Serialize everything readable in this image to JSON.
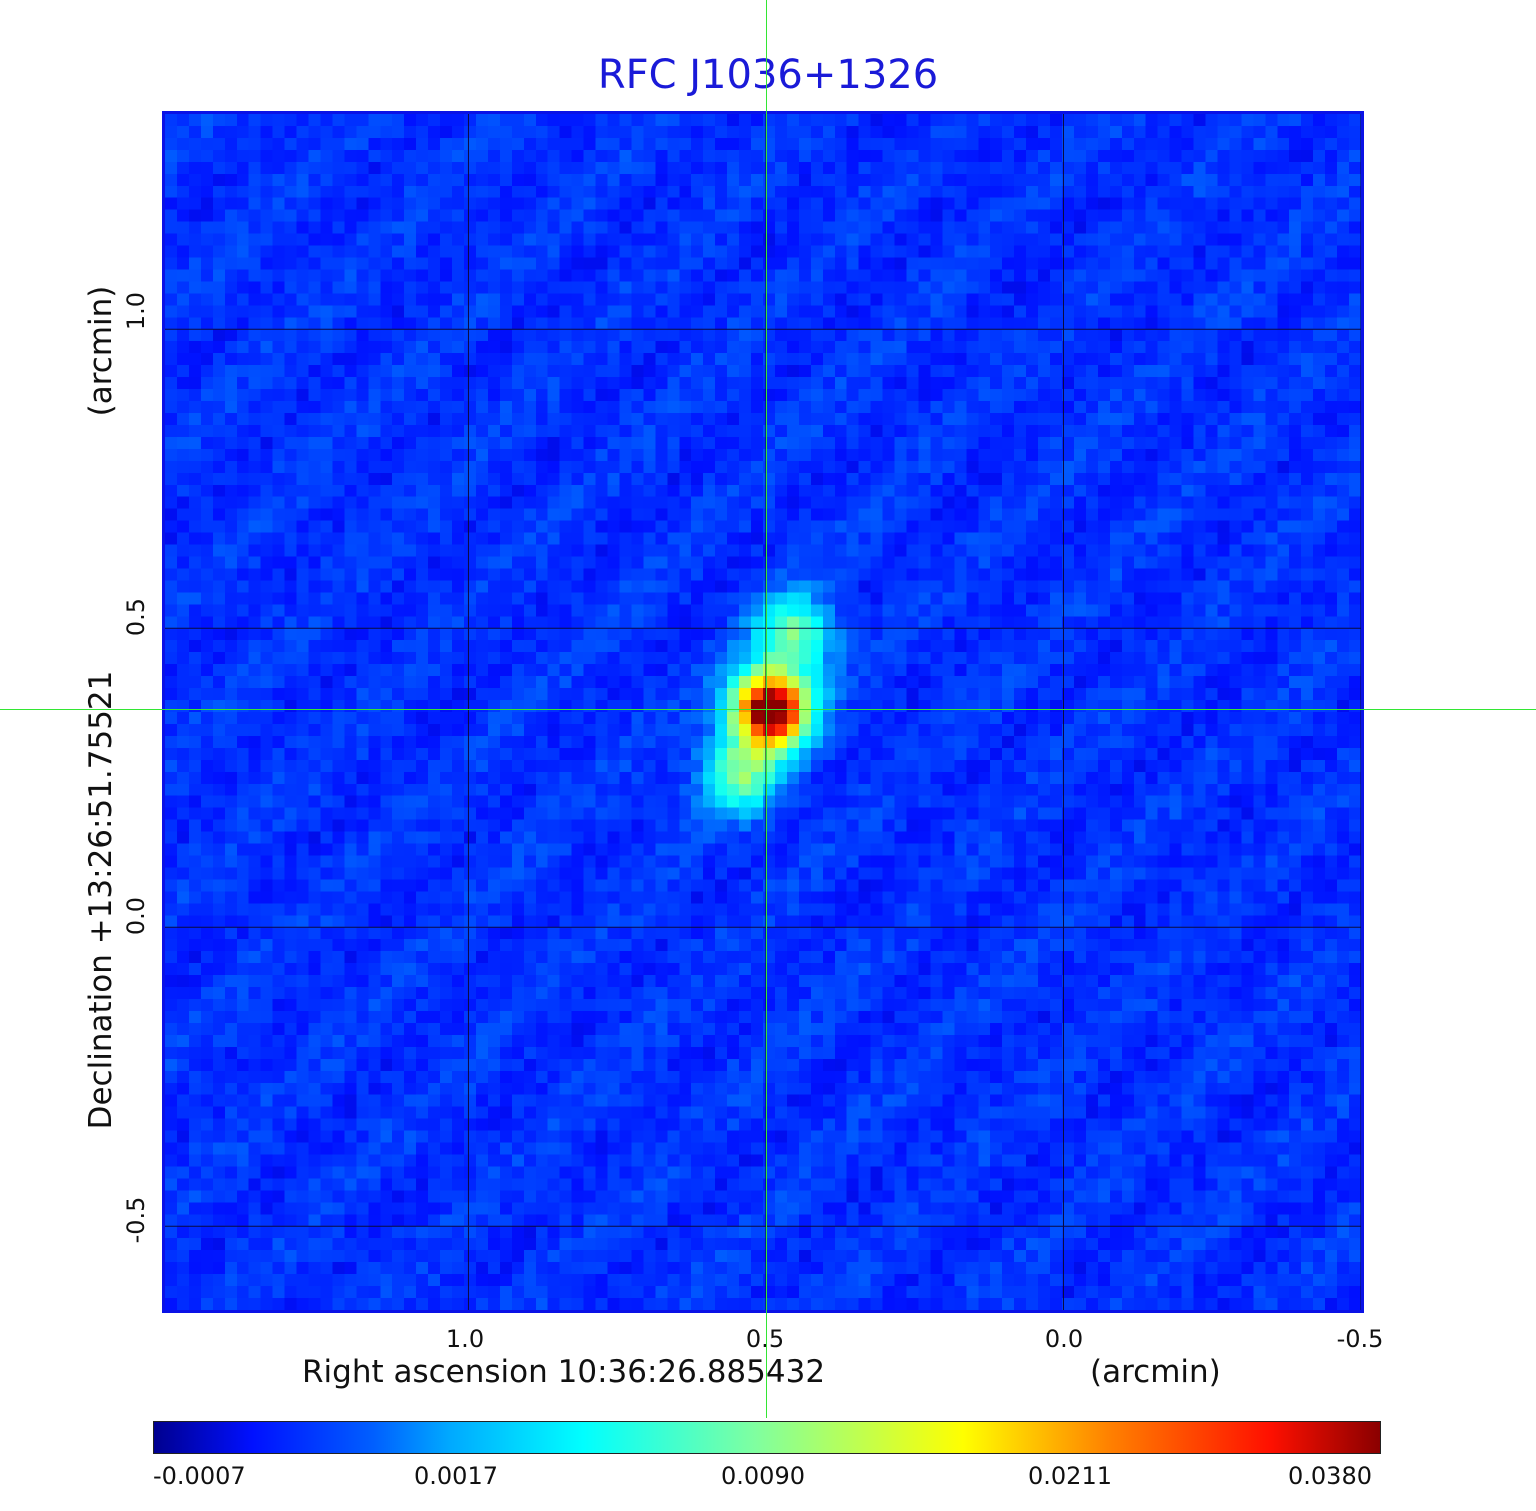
{
  "chart_data": {
    "type": "heatmap",
    "title": "RFC J1036+1326",
    "xlabel": "Right ascension  10:36:26.885432",
    "xunit": "(arcmin)",
    "ylabel": "Declination  +13:26:51.75521",
    "yunit": "(arcmin)",
    "x_ticks": [
      "1.0",
      "0.5",
      "0.0",
      "-0.5"
    ],
    "y_ticks": [
      "1.0",
      "0.5",
      "0.0",
      "-0.5"
    ],
    "xlim": [
      1.51,
      -0.5
    ],
    "ylim": [
      -0.64,
      1.36
    ],
    "grid": true,
    "crosshair": {
      "x": 0.5,
      "y": 0.365
    },
    "colorbar": {
      "position": "bottom",
      "ticks": [
        "-0.0007",
        "0.0017",
        "0.0090",
        "0.0211",
        "0.0380"
      ]
    },
    "sources": [
      {
        "x": 0.492,
        "y": 0.365,
        "peak": 0.038
      },
      {
        "x": 0.452,
        "y": 0.49,
        "peak": 0.0035
      },
      {
        "x": 0.545,
        "y": 0.255,
        "peak": 0.003
      }
    ],
    "colors": {
      "background_blue": "#1a46ec",
      "crosshair": "#33e633",
      "title": "#1a1ad8"
    }
  }
}
